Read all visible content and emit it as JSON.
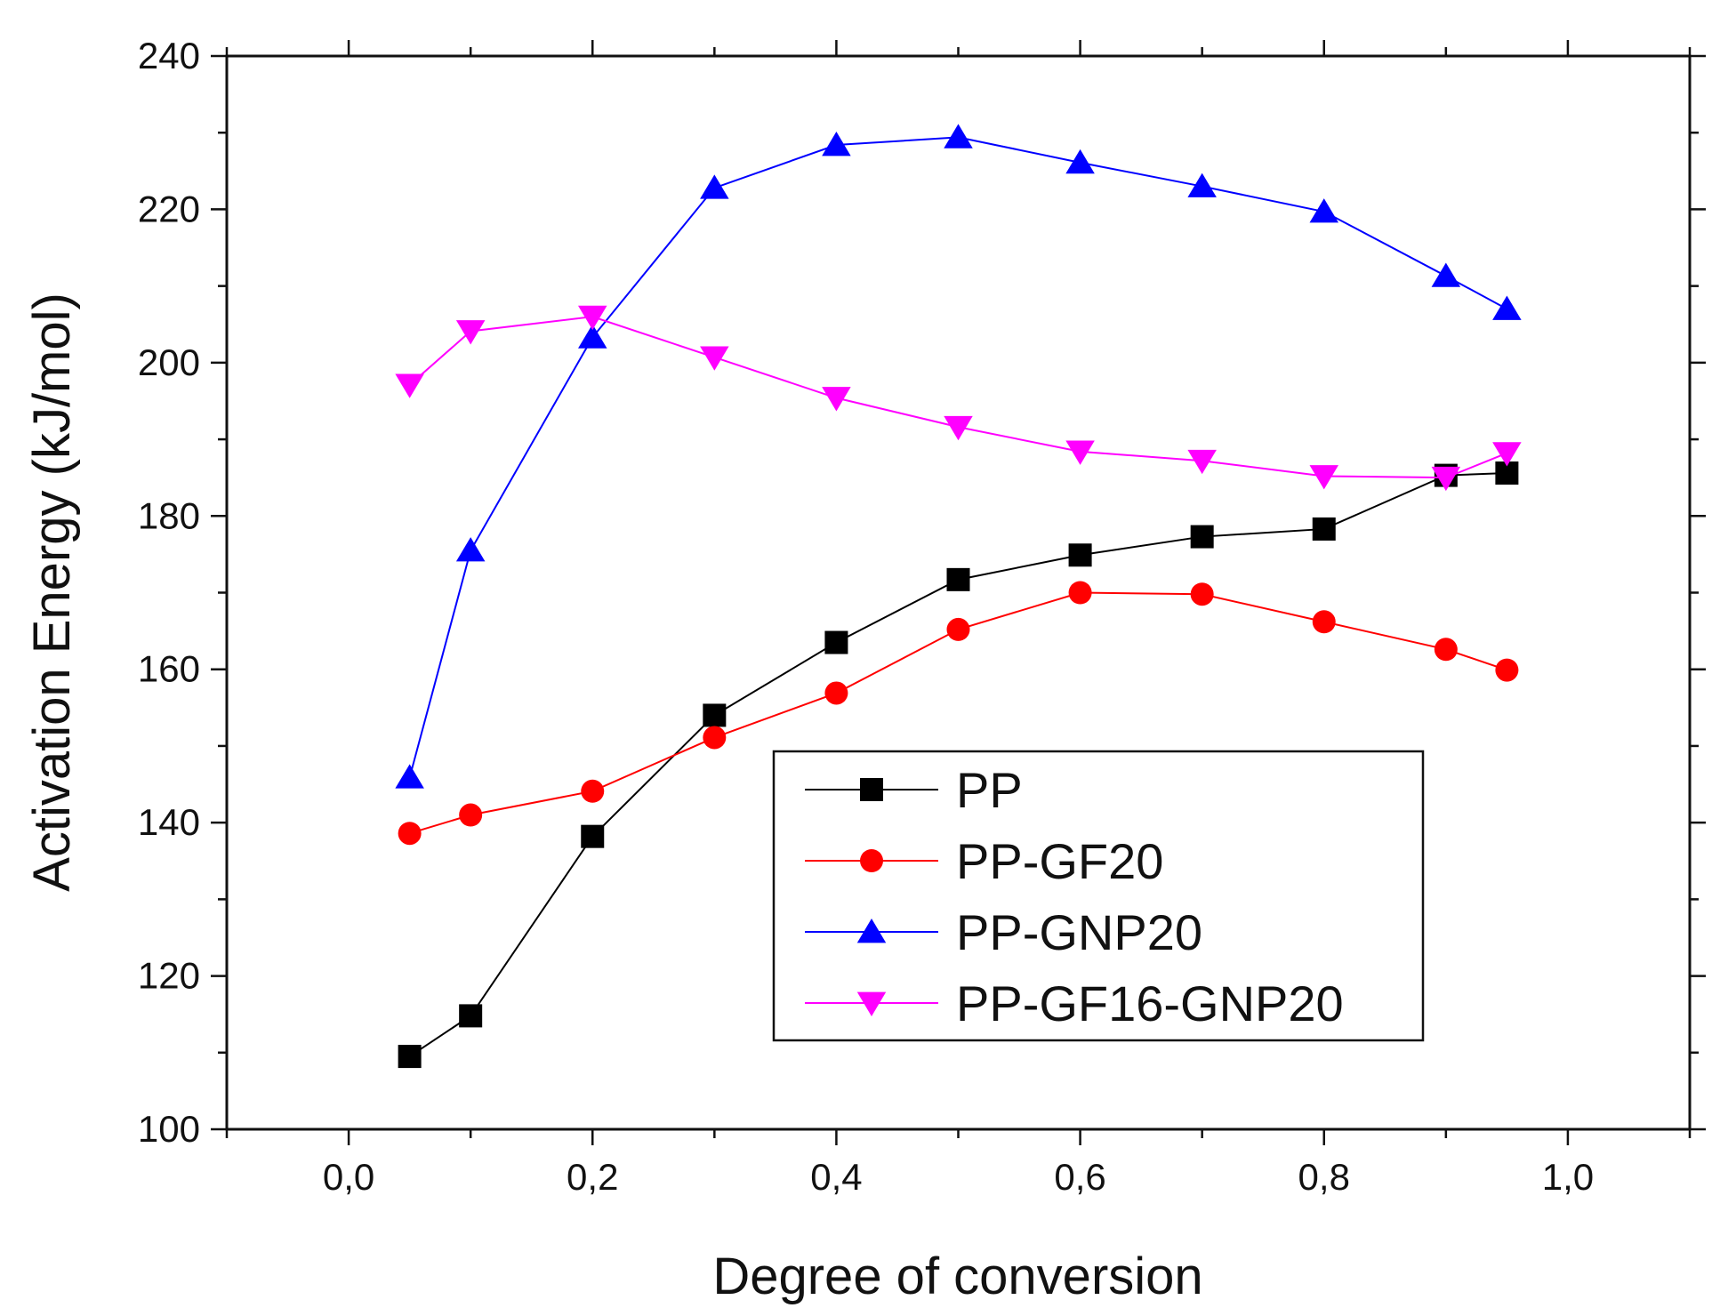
{
  "chart_data": {
    "type": "line",
    "title": "",
    "xlabel": "Degree of conversion",
    "ylabel": "Activation Energy (kJ/mol)",
    "xlim": [
      -0.1,
      1.1
    ],
    "ylim": [
      100,
      240
    ],
    "xticks": [
      0.0,
      0.2,
      0.4,
      0.6,
      0.8,
      1.0
    ],
    "xtick_labels": [
      "0,0",
      "0,2",
      "0,4",
      "0,6",
      "0,8",
      "1,0"
    ],
    "yticks": [
      100,
      120,
      140,
      160,
      180,
      200,
      220,
      240
    ],
    "ytick_labels": [
      "100",
      "120",
      "140",
      "160",
      "180",
      "200",
      "220",
      "240"
    ],
    "grid": false,
    "legend_position": "lower-right",
    "x": [
      0.05,
      0.1,
      0.2,
      0.3,
      0.4,
      0.5,
      0.6,
      0.7,
      0.8,
      0.9,
      0.95
    ],
    "series": [
      {
        "name": "PP",
        "color": "#000000",
        "marker": "square",
        "values": [
          109.5,
          114.8,
          138.2,
          154.0,
          163.5,
          171.7,
          174.9,
          177.3,
          178.3,
          185.3,
          185.6
        ]
      },
      {
        "name": "PP-GF20",
        "color": "#ff0000",
        "marker": "circle",
        "values": [
          138.6,
          141.0,
          144.1,
          151.1,
          156.9,
          165.2,
          170.0,
          169.8,
          166.2,
          162.6,
          159.9
        ]
      },
      {
        "name": "PP-GNP20",
        "color": "#0000ff",
        "marker": "triangle-up",
        "values": [
          145.9,
          175.5,
          203.3,
          222.8,
          228.4,
          229.4,
          226.1,
          223.0,
          219.7,
          211.3,
          207.0
        ]
      },
      {
        "name": "PP-GF16-GNP20",
        "color": "#ff00ff",
        "marker": "triangle-down",
        "values": [
          197.1,
          204.1,
          206.0,
          200.7,
          195.4,
          191.6,
          188.4,
          187.2,
          185.2,
          185.0,
          188.2
        ]
      }
    ]
  }
}
